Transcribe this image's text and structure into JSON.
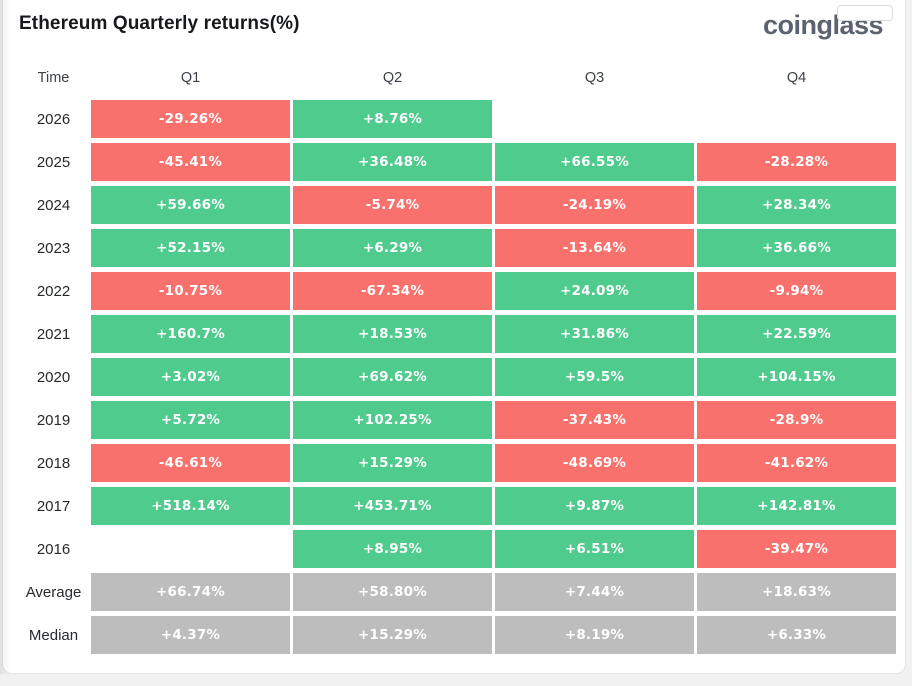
{
  "header": {
    "title": "Ethereum Quarterly returns(%)",
    "logo_text": "coinglass"
  },
  "colors": {
    "positive": "#4ecb8d",
    "negative": "#f9716c",
    "neutral": "#bdbdbd",
    "card_bg": "#ffffff",
    "page_bg": "#f1f1f2"
  },
  "table": {
    "columns": [
      "Time",
      "Q1",
      "Q2",
      "Q3",
      "Q4"
    ],
    "rows": [
      {
        "label": "2026",
        "type": "data",
        "cells": [
          "-29.26%",
          "+8.76%",
          "",
          ""
        ]
      },
      {
        "label": "2025",
        "type": "data",
        "cells": [
          "-45.41%",
          "+36.48%",
          "+66.55%",
          "-28.28%"
        ]
      },
      {
        "label": "2024",
        "type": "data",
        "cells": [
          "+59.66%",
          "-5.74%",
          "-24.19%",
          "+28.34%"
        ]
      },
      {
        "label": "2023",
        "type": "data",
        "cells": [
          "+52.15%",
          "+6.29%",
          "-13.64%",
          "+36.66%"
        ]
      },
      {
        "label": "2022",
        "type": "data",
        "cells": [
          "-10.75%",
          "-67.34%",
          "+24.09%",
          "-9.94%"
        ]
      },
      {
        "label": "2021",
        "type": "data",
        "cells": [
          "+160.7%",
          "+18.53%",
          "+31.86%",
          "+22.59%"
        ]
      },
      {
        "label": "2020",
        "type": "data",
        "cells": [
          "+3.02%",
          "+69.62%",
          "+59.5%",
          "+104.15%"
        ]
      },
      {
        "label": "2019",
        "type": "data",
        "cells": [
          "+5.72%",
          "+102.25%",
          "-37.43%",
          "-28.9%"
        ]
      },
      {
        "label": "2018",
        "type": "data",
        "cells": [
          "-46.61%",
          "+15.29%",
          "-48.69%",
          "-41.62%"
        ]
      },
      {
        "label": "2017",
        "type": "data",
        "cells": [
          "+518.14%",
          "+453.71%",
          "+9.87%",
          "+142.81%"
        ]
      },
      {
        "label": "2016",
        "type": "data",
        "cells": [
          "",
          "+8.95%",
          "+6.51%",
          "-39.47%"
        ]
      },
      {
        "label": "Average",
        "type": "summary",
        "cells": [
          "+66.74%",
          "+58.80%",
          "+7.44%",
          "+18.63%"
        ]
      },
      {
        "label": "Median",
        "type": "summary",
        "cells": [
          "+4.37%",
          "+15.29%",
          "+8.19%",
          "+6.33%"
        ]
      }
    ]
  },
  "chart_data": {
    "type": "heatmap",
    "title": "Ethereum Quarterly returns(%)",
    "columns": [
      "Q1",
      "Q2",
      "Q3",
      "Q4"
    ],
    "rows": [
      "2026",
      "2025",
      "2024",
      "2023",
      "2022",
      "2021",
      "2020",
      "2019",
      "2018",
      "2017",
      "2016",
      "Average",
      "Median"
    ],
    "values": [
      [
        -29.26,
        8.76,
        null,
        null
      ],
      [
        -45.41,
        36.48,
        66.55,
        -28.28
      ],
      [
        59.66,
        -5.74,
        -24.19,
        28.34
      ],
      [
        52.15,
        6.29,
        -13.64,
        36.66
      ],
      [
        -10.75,
        -67.34,
        24.09,
        -9.94
      ],
      [
        160.7,
        18.53,
        31.86,
        22.59
      ],
      [
        3.02,
        69.62,
        59.5,
        104.15
      ],
      [
        5.72,
        102.25,
        -37.43,
        -28.9
      ],
      [
        -46.61,
        15.29,
        -48.69,
        -41.62
      ],
      [
        518.14,
        453.71,
        9.87,
        142.81
      ],
      [
        null,
        8.95,
        6.51,
        -39.47
      ],
      [
        66.74,
        58.8,
        7.44,
        18.63
      ],
      [
        4.37,
        15.29,
        8.19,
        6.33
      ]
    ],
    "color_rule": "negative=red, positive=green, Average/Median rows=gray",
    "legend": "none",
    "unit": "%"
  }
}
